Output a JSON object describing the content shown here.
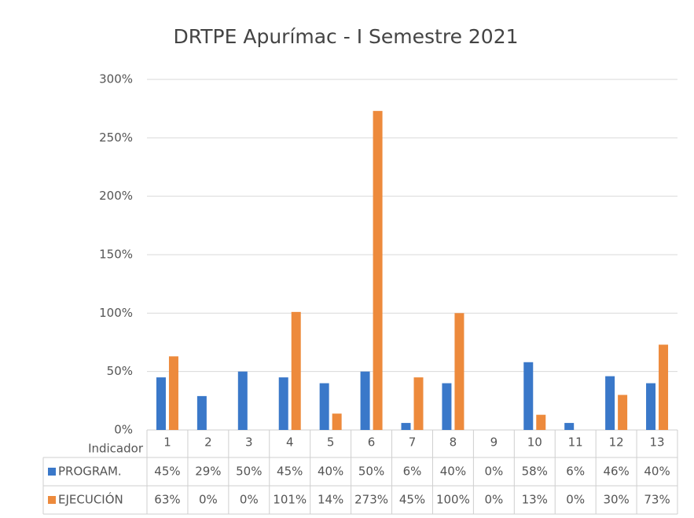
{
  "chart_data": {
    "type": "bar",
    "title": "DRTPE Apurímac - I Semestre 2021",
    "x_label": "Indicador",
    "categories": [
      "1",
      "2",
      "3",
      "4",
      "5",
      "6",
      "7",
      "8",
      "9",
      "10",
      "11",
      "12",
      "13"
    ],
    "series": [
      {
        "name": "PROGRAM.",
        "color": "#3a78c9",
        "values": [
          45,
          29,
          50,
          45,
          40,
          50,
          6,
          40,
          0,
          58,
          6,
          46,
          40
        ],
        "value_labels": [
          "45%",
          "29%",
          "50%",
          "45%",
          "40%",
          "50%",
          "6%",
          "40%",
          "0%",
          "58%",
          "6%",
          "46%",
          "40%"
        ]
      },
      {
        "name": "EJECUCIÓN",
        "color": "#ed8a3c",
        "values": [
          63,
          0,
          0,
          101,
          14,
          273,
          45,
          100,
          0,
          13,
          0,
          30,
          73
        ],
        "value_labels": [
          "63%",
          "0%",
          "0%",
          "101%",
          "14%",
          "273%",
          "45%",
          "100%",
          "0%",
          "13%",
          "0%",
          "30%",
          "73%"
        ]
      }
    ],
    "ylim": [
      0,
      300
    ],
    "yticks": [
      {
        "value": 0,
        "label": "0%"
      },
      {
        "value": 50,
        "label": "50%"
      },
      {
        "value": 100,
        "label": "100%"
      },
      {
        "value": 150,
        "label": "150%"
      },
      {
        "value": 200,
        "label": "200%"
      },
      {
        "value": 250,
        "label": "250%"
      },
      {
        "value": 300,
        "label": "300%"
      }
    ],
    "grid": true
  }
}
